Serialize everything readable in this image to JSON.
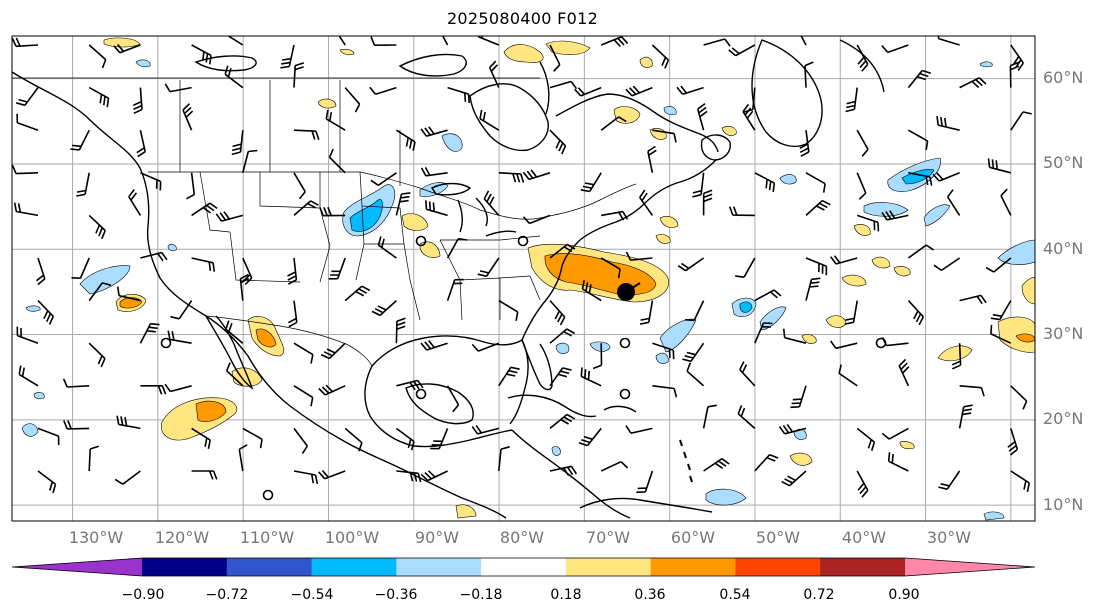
{
  "title": "2025080400 F012",
  "lat_labels": [
    "60°N",
    "50°N",
    "40°N",
    "30°N",
    "20°N",
    "10°N"
  ],
  "lon_labels": [
    "130°W",
    "120°W",
    "110°W",
    "100°W",
    "90°W",
    "80°W",
    "70°W",
    "60°W",
    "50°W",
    "40°W",
    "30°W"
  ],
  "colorbar": {
    "ticks": [
      "−0.90",
      "−0.72",
      "−0.54",
      "−0.36",
      "−0.18",
      "0.18",
      "0.36",
      "0.54",
      "0.72",
      "0.90"
    ],
    "colors": [
      "#9933cc",
      "#000088",
      "#3355cc",
      "#00bbff",
      "#aaddff",
      "#ffffff",
      "#ffe680",
      "#ff9900",
      "#ff4400",
      "#aa2222",
      "#ff88aa"
    ]
  },
  "storm_marker": {
    "lat": 35,
    "lon": -68
  }
}
